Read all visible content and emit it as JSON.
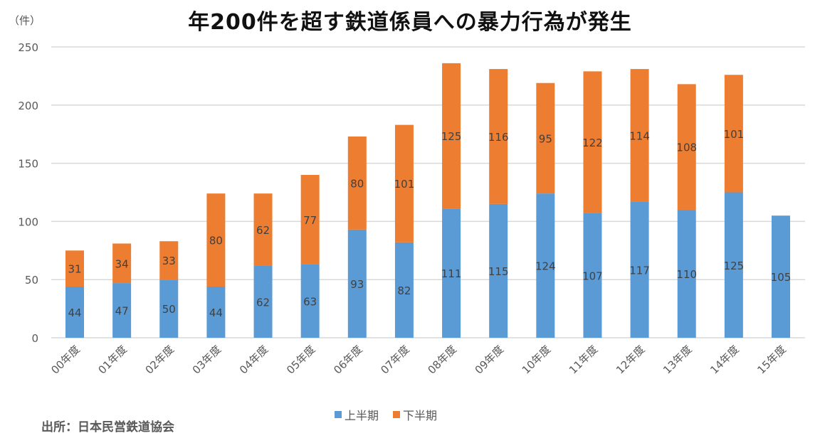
{
  "title": "年200件を超す鉄道係員への暴力行為が発生",
  "unit_label": "（件）",
  "source": "出所：日本民営鉄道協会",
  "colors": {
    "first_half": "#5B9BD5",
    "second_half": "#ED7D31",
    "grid": "#D9D9D9",
    "axis_text": "#595959",
    "label_text": "#404040"
  },
  "chart_data": {
    "type": "bar",
    "stacked": true,
    "title": "年200件を超す鉄道係員への暴力行為が発生",
    "xlabel": "",
    "ylabel": "（件）",
    "ylim": [
      0,
      250
    ],
    "yticks": [
      0,
      50,
      100,
      150,
      200,
      250
    ],
    "grid": true,
    "legend_position": "bottom",
    "categories": [
      "00年度",
      "01年度",
      "02年度",
      "03年度",
      "04年度",
      "05年度",
      "06年度",
      "07年度",
      "08年度",
      "09年度",
      "10年度",
      "11年度",
      "12年度",
      "13年度",
      "14年度",
      "15年度"
    ],
    "series": [
      {
        "name": "上半期",
        "values": [
          44,
          47,
          50,
          44,
          62,
          63,
          93,
          82,
          111,
          115,
          124,
          107,
          117,
          110,
          125,
          105
        ]
      },
      {
        "name": "下半期",
        "values": [
          31,
          34,
          33,
          80,
          62,
          77,
          80,
          101,
          125,
          116,
          95,
          122,
          114,
          108,
          101,
          null
        ]
      }
    ],
    "source": "出所：日本民営鉄道協会"
  }
}
